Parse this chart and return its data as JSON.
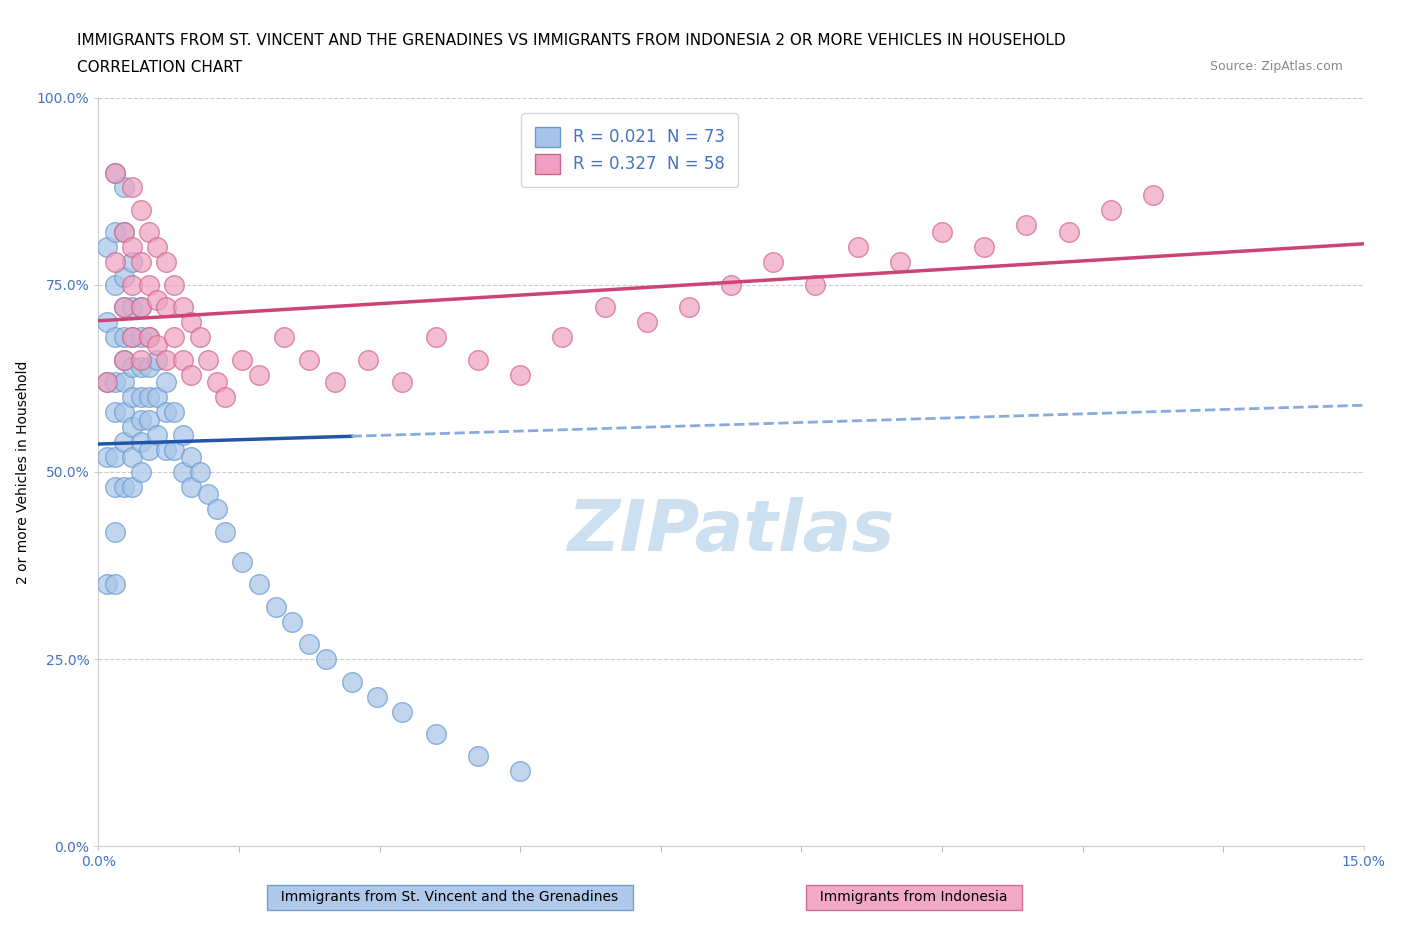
{
  "title_line1": "IMMIGRANTS FROM ST. VINCENT AND THE GRENADINES VS IMMIGRANTS FROM INDONESIA 2 OR MORE VEHICLES IN HOUSEHOLD",
  "title_line2": "CORRELATION CHART",
  "source_text": "Source: ZipAtlas.com",
  "ylabel": "2 or more Vehicles in Household",
  "xlim": [
    0.0,
    0.15
  ],
  "ylim": [
    0.0,
    1.0
  ],
  "ytick_values": [
    0.0,
    0.25,
    0.5,
    0.75,
    1.0
  ],
  "xtick_values": [
    0.0,
    0.15
  ],
  "watermark": "ZIPatlas",
  "legend_R_color": "#4472c4",
  "blue_color": "#a8c4e8",
  "blue_edge": "#6699cc",
  "blue_trend_solid_color": "#2255aa",
  "blue_trend_dash_color": "#88aadd",
  "pink_color": "#f0a0c0",
  "pink_edge": "#cc6688",
  "pink_trend_color": "#cc4477",
  "sv_R": 0.021,
  "sv_N": 73,
  "ind_R": 0.327,
  "ind_N": 58,
  "sv_x": [
    0.001,
    0.001,
    0.001,
    0.001,
    0.001,
    0.002,
    0.002,
    0.002,
    0.002,
    0.002,
    0.002,
    0.002,
    0.002,
    0.002,
    0.002,
    0.003,
    0.003,
    0.003,
    0.003,
    0.003,
    0.003,
    0.003,
    0.003,
    0.003,
    0.003,
    0.004,
    0.004,
    0.004,
    0.004,
    0.004,
    0.004,
    0.004,
    0.004,
    0.005,
    0.005,
    0.005,
    0.005,
    0.005,
    0.005,
    0.005,
    0.006,
    0.006,
    0.006,
    0.006,
    0.006,
    0.007,
    0.007,
    0.007,
    0.008,
    0.008,
    0.008,
    0.009,
    0.009,
    0.01,
    0.01,
    0.011,
    0.011,
    0.012,
    0.013,
    0.014,
    0.015,
    0.017,
    0.019,
    0.021,
    0.023,
    0.025,
    0.027,
    0.03,
    0.033,
    0.036,
    0.04,
    0.045,
    0.05
  ],
  "sv_y": [
    0.52,
    0.62,
    0.7,
    0.35,
    0.8,
    0.9,
    0.82,
    0.75,
    0.68,
    0.62,
    0.58,
    0.52,
    0.48,
    0.42,
    0.35,
    0.88,
    0.82,
    0.76,
    0.72,
    0.68,
    0.65,
    0.62,
    0.58,
    0.54,
    0.48,
    0.78,
    0.72,
    0.68,
    0.64,
    0.6,
    0.56,
    0.52,
    0.48,
    0.72,
    0.68,
    0.64,
    0.6,
    0.57,
    0.54,
    0.5,
    0.68,
    0.64,
    0.6,
    0.57,
    0.53,
    0.65,
    0.6,
    0.55,
    0.62,
    0.58,
    0.53,
    0.58,
    0.53,
    0.55,
    0.5,
    0.52,
    0.48,
    0.5,
    0.47,
    0.45,
    0.42,
    0.38,
    0.35,
    0.32,
    0.3,
    0.27,
    0.25,
    0.22,
    0.2,
    0.18,
    0.15,
    0.12,
    0.1
  ],
  "ind_x": [
    0.001,
    0.002,
    0.002,
    0.003,
    0.003,
    0.003,
    0.004,
    0.004,
    0.004,
    0.004,
    0.005,
    0.005,
    0.005,
    0.005,
    0.006,
    0.006,
    0.006,
    0.007,
    0.007,
    0.007,
    0.008,
    0.008,
    0.008,
    0.009,
    0.009,
    0.01,
    0.01,
    0.011,
    0.011,
    0.012,
    0.013,
    0.014,
    0.015,
    0.017,
    0.019,
    0.022,
    0.025,
    0.028,
    0.032,
    0.036,
    0.04,
    0.045,
    0.05,
    0.055,
    0.06,
    0.065,
    0.07,
    0.075,
    0.08,
    0.085,
    0.09,
    0.095,
    0.1,
    0.105,
    0.11,
    0.115,
    0.12,
    0.125
  ],
  "ind_y": [
    0.62,
    0.78,
    0.9,
    0.82,
    0.72,
    0.65,
    0.88,
    0.8,
    0.75,
    0.68,
    0.85,
    0.78,
    0.72,
    0.65,
    0.82,
    0.75,
    0.68,
    0.8,
    0.73,
    0.67,
    0.78,
    0.72,
    0.65,
    0.75,
    0.68,
    0.72,
    0.65,
    0.7,
    0.63,
    0.68,
    0.65,
    0.62,
    0.6,
    0.65,
    0.63,
    0.68,
    0.65,
    0.62,
    0.65,
    0.62,
    0.68,
    0.65,
    0.63,
    0.68,
    0.72,
    0.7,
    0.72,
    0.75,
    0.78,
    0.75,
    0.8,
    0.78,
    0.82,
    0.8,
    0.83,
    0.82,
    0.85,
    0.87
  ],
  "grid_color": "#cccccc",
  "background_color": "#ffffff",
  "title_fontsize": 11,
  "tick_fontsize": 10,
  "legend_fontsize": 12,
  "watermark_color": "#cce0f0",
  "watermark_fontsize": 52
}
